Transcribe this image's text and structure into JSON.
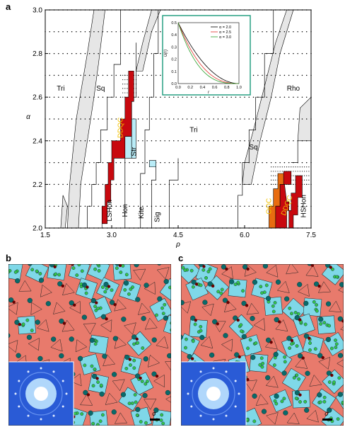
{
  "panels": {
    "a": "a",
    "b": "b",
    "c": "c"
  },
  "chart_data": {
    "type": "phase-diagram",
    "xlabel": "ρ",
    "ylabel": "α",
    "xlim": [
      1.5,
      7.5
    ],
    "ylim": [
      2.0,
      3.0
    ],
    "x_ticks": [
      "1.5",
      "3.0",
      "4.5",
      "6.0",
      "7.5"
    ],
    "y_ticks": [
      "2.0",
      "2.2",
      "2.4",
      "2.6",
      "2.8",
      "3.0"
    ],
    "phase_labels": [
      "Tri",
      "Sq",
      "DDQC",
      "Str",
      "Tri",
      "Sq",
      "Rho",
      "LSHon",
      "Hon",
      "Kite",
      "Sig",
      "OQC",
      "DDQC",
      "HSHon"
    ],
    "colors": {
      "ddqc": "#c8090f",
      "oqc": "#e86c10",
      "str": "#b9ecf7",
      "coexist": "#e6e6e6",
      "inset_border": "#1a9a7a"
    },
    "phase_regions": [
      {
        "phase": "DDQC",
        "alpha": [
          2.0,
          2.7
        ],
        "rho_low": [
          2.65,
          3.45
        ],
        "rho_high": [
          2.9,
          3.65
        ]
      },
      {
        "phase": "Str",
        "alpha": [
          2.32,
          2.44
        ],
        "rho": [
          3.45,
          3.95
        ]
      },
      {
        "phase": "OQC",
        "alpha": [
          2.0,
          2.2
        ],
        "rho": [
          6.5,
          6.8
        ]
      },
      {
        "phase": "DDQC",
        "alpha": [
          2.0,
          2.2
        ],
        "rho": [
          6.8,
          7.3
        ]
      }
    ],
    "inset": {
      "xlabel": "r",
      "ylabel": "U(r)",
      "xlim": [
        0.0,
        1.0
      ],
      "ylim": [
        0.0,
        0.5
      ],
      "x_ticks": [
        "0.0",
        "0.2",
        "0.4",
        "0.6",
        "0.8",
        "1.0"
      ],
      "y_ticks": [
        "0.0",
        "0.1",
        "0.2",
        "0.3",
        "0.4",
        "0.5"
      ],
      "series": [
        {
          "name": "α = 2.0",
          "color": "#000000",
          "alpha": 2.0
        },
        {
          "name": "α = 2.5",
          "color": "#e0302a",
          "alpha": 2.5
        },
        {
          "name": "α = 3.0",
          "color": "#2ca02c",
          "alpha": 3.0
        }
      ]
    }
  },
  "tiling_b": {
    "scale_label": "σ",
    "colors": {
      "square": "#7fd8e8",
      "triangle": "#e87a6c",
      "large": "#0a6a6a",
      "small": "#33c64a",
      "dark": "#6a0000"
    }
  },
  "tiling_c": {
    "scale_label": "σ",
    "colors": {
      "square": "#7fd8e8",
      "triangle": "#e87a6c",
      "large": "#0a6a6a",
      "small": "#33c64a",
      "dark": "#6a0000"
    }
  }
}
